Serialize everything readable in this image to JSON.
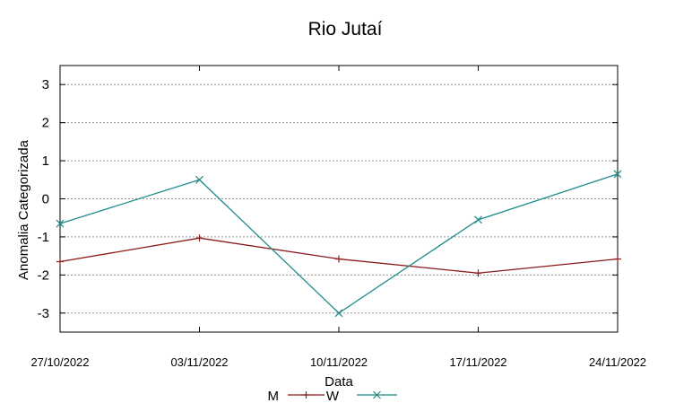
{
  "chart_data": {
    "type": "line",
    "title": "Rio Jutaí",
    "xlabel": "Data",
    "ylabel": "Anomalia Categorizada",
    "categories": [
      "27/10/2022",
      "03/11/2022",
      "10/11/2022",
      "17/11/2022",
      "24/11/2022"
    ],
    "series": [
      {
        "name": "M",
        "color": "#8b1a1a",
        "marker": "plus",
        "values": [
          -1.65,
          -1.03,
          -1.58,
          -1.95,
          -1.58
        ]
      },
      {
        "name": "W",
        "color": "#1f8a8a",
        "marker": "x",
        "values": [
          -0.65,
          0.5,
          -3.0,
          -0.55,
          0.65
        ]
      }
    ],
    "yticks": [
      -3,
      -2,
      -1,
      0,
      1,
      2,
      3
    ],
    "ylim": [
      -3.5,
      3.5
    ],
    "grid": "horizontal dotted",
    "legend_position": "bottom-center"
  }
}
